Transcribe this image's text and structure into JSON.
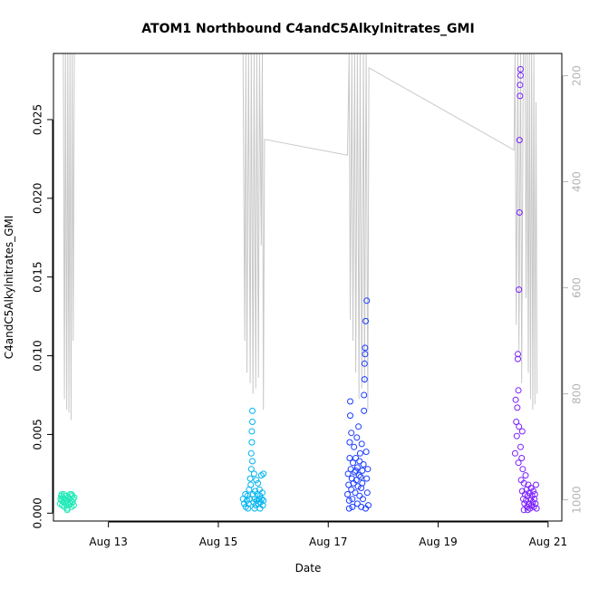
{
  "chart_data": {
    "type": "scatter",
    "title": "ATOM1 Northbound C4andC5Alkylnitrates_GMI",
    "xlabel": "Date",
    "ylabel": "C4andC5Alkylnitrates_GMI",
    "xlim": [
      12.0,
      21.25
    ],
    "ylim": [
      -0.0005,
      0.0292
    ],
    "x_unit": "day of August (date axis)",
    "x_ticks": [
      {
        "value": 13,
        "label": "Aug 13"
      },
      {
        "value": 15,
        "label": "Aug 15"
      },
      {
        "value": 17,
        "label": "Aug 17"
      },
      {
        "value": 19,
        "label": "Aug 19"
      },
      {
        "value": 21,
        "label": "Aug 21"
      }
    ],
    "y_ticks": [
      {
        "value": 0.0,
        "label": "0.000"
      },
      {
        "value": 0.005,
        "label": "0.005"
      },
      {
        "value": 0.01,
        "label": "0.010"
      },
      {
        "value": 0.015,
        "label": "0.015"
      },
      {
        "value": 0.02,
        "label": "0.020"
      },
      {
        "value": 0.025,
        "label": "0.025"
      }
    ],
    "y2_axis": {
      "reversed": true,
      "lim": [
        1040,
        158
      ],
      "color": "#b4b4b4",
      "ticks": [
        {
          "value": 200,
          "label": "200"
        },
        {
          "value": 400,
          "label": "400"
        },
        {
          "value": 600,
          "label": "600"
        },
        {
          "value": 800,
          "label": "800"
        },
        {
          "value": 1000,
          "label": "1000"
        }
      ]
    },
    "grid": false,
    "legend": "none",
    "pressure_line": {
      "color": "#c8c8c8",
      "points": [
        [
          12.18,
          100
        ],
        [
          12.2,
          810
        ],
        [
          12.22,
          100
        ],
        [
          12.24,
          830
        ],
        [
          12.26,
          100
        ],
        [
          12.28,
          835
        ],
        [
          12.3,
          100
        ],
        [
          12.32,
          850
        ],
        [
          12.34,
          100
        ],
        [
          12.36,
          700
        ],
        [
          12.38,
          100
        ],
        [
          15.45,
          100
        ],
        [
          15.48,
          700
        ],
        [
          15.5,
          100
        ],
        [
          15.52,
          760
        ],
        [
          15.55,
          100
        ],
        [
          15.58,
          780
        ],
        [
          15.6,
          100
        ],
        [
          15.63,
          800
        ],
        [
          15.65,
          100
        ],
        [
          15.68,
          790
        ],
        [
          15.7,
          100
        ],
        [
          15.73,
          770
        ],
        [
          15.75,
          100
        ],
        [
          15.78,
          520
        ],
        [
          15.8,
          100
        ],
        [
          15.82,
          830
        ],
        [
          15.84,
          320
        ],
        [
          17.35,
          350
        ],
        [
          17.38,
          100
        ],
        [
          17.4,
          660
        ],
        [
          17.43,
          100
        ],
        [
          17.45,
          700
        ],
        [
          17.48,
          100
        ],
        [
          17.5,
          760
        ],
        [
          17.53,
          100
        ],
        [
          17.56,
          810
        ],
        [
          17.58,
          100
        ],
        [
          17.61,
          790
        ],
        [
          17.64,
          100
        ],
        [
          17.66,
          780
        ],
        [
          17.69,
          100
        ],
        [
          17.72,
          830
        ],
        [
          17.74,
          185
        ],
        [
          20.38,
          340
        ],
        [
          20.4,
          100
        ],
        [
          20.42,
          670
        ],
        [
          20.45,
          100
        ],
        [
          20.47,
          720
        ],
        [
          20.5,
          100
        ],
        [
          20.52,
          780
        ],
        [
          20.55,
          100
        ],
        [
          20.58,
          100
        ],
        [
          20.6,
          620
        ],
        [
          20.62,
          100
        ],
        [
          20.64,
          760
        ],
        [
          20.66,
          100
        ],
        [
          20.68,
          810
        ],
        [
          20.7,
          100
        ],
        [
          20.72,
          830
        ],
        [
          20.74,
          100
        ],
        [
          20.76,
          820
        ],
        [
          20.78,
          250
        ],
        [
          20.8,
          800
        ]
      ]
    },
    "series": [
      {
        "color": "#1de9b6",
        "points": [
          [
            12.12,
            0.0006
          ],
          [
            12.13,
            0.0009
          ],
          [
            12.14,
            0.0011
          ],
          [
            12.15,
            0.0008
          ],
          [
            12.16,
            0.0005
          ],
          [
            12.17,
            0.001
          ],
          [
            12.18,
            0.0007
          ],
          [
            12.19,
            0.0012
          ],
          [
            12.2,
            0.0004
          ],
          [
            12.21,
            0.0009
          ],
          [
            12.22,
            0.0006
          ],
          [
            12.23,
            0.0011
          ],
          [
            12.24,
            0.0008
          ],
          [
            12.25,
            0.0003
          ],
          [
            12.26,
            0.0007
          ],
          [
            12.27,
            0.001
          ],
          [
            12.28,
            0.0005
          ],
          [
            12.29,
            0.0009
          ],
          [
            12.3,
            0.0012
          ],
          [
            12.31,
            0.0006
          ],
          [
            12.32,
            0.0008
          ],
          [
            12.33,
            0.0004
          ],
          [
            12.34,
            0.0011
          ],
          [
            12.35,
            0.0007
          ],
          [
            12.36,
            0.0009
          ],
          [
            12.37,
            0.0005
          ],
          [
            12.38,
            0.001
          ],
          [
            12.15,
            0.0012
          ],
          [
            12.25,
            0.0002
          ],
          [
            12.33,
            0.0012
          ]
        ]
      },
      {
        "color": "#00b4f0",
        "points": [
          [
            15.45,
            0.0009
          ],
          [
            15.47,
            0.0006
          ],
          [
            15.49,
            0.0012
          ],
          [
            15.5,
            0.0004
          ],
          [
            15.52,
            0.0008
          ],
          [
            15.53,
            0.0011
          ],
          [
            15.55,
            0.0006
          ],
          [
            15.56,
            0.0015
          ],
          [
            15.57,
            0.0009
          ],
          [
            15.58,
            0.0022
          ],
          [
            15.59,
            0.0018
          ],
          [
            15.6,
            0.0028
          ],
          [
            15.6,
            0.0038
          ],
          [
            15.61,
            0.0045
          ],
          [
            15.61,
            0.0052
          ],
          [
            15.62,
            0.0058
          ],
          [
            15.62,
            0.0065
          ],
          [
            15.62,
            0.0033
          ],
          [
            15.63,
            0.0012
          ],
          [
            15.64,
            0.0007
          ],
          [
            15.65,
            0.0025
          ],
          [
            15.66,
            0.0009
          ],
          [
            15.67,
            0.0014
          ],
          [
            15.68,
            0.0005
          ],
          [
            15.69,
            0.0021
          ],
          [
            15.7,
            0.0008
          ],
          [
            15.71,
            0.0012
          ],
          [
            15.72,
            0.0019
          ],
          [
            15.73,
            0.0006
          ],
          [
            15.74,
            0.0009
          ],
          [
            15.75,
            0.0015
          ],
          [
            15.76,
            0.0011
          ],
          [
            15.77,
            0.0007
          ],
          [
            15.78,
            0.0024
          ],
          [
            15.79,
            0.0009
          ],
          [
            15.8,
            0.0013
          ],
          [
            15.81,
            0.0005
          ],
          [
            15.82,
            0.0025
          ],
          [
            15.82,
            0.0008
          ],
          [
            15.54,
            0.0003
          ],
          [
            15.66,
            0.0003
          ],
          [
            15.76,
            0.0003
          ]
        ]
      },
      {
        "color": "#1a3cff",
        "points": [
          [
            17.35,
            0.0012
          ],
          [
            17.36,
            0.0025
          ],
          [
            17.37,
            0.0018
          ],
          [
            17.38,
            0.0008
          ],
          [
            17.39,
            0.0035
          ],
          [
            17.39,
            0.0045
          ],
          [
            17.4,
            0.0062
          ],
          [
            17.4,
            0.0071
          ],
          [
            17.41,
            0.0028
          ],
          [
            17.42,
            0.0015
          ],
          [
            17.43,
            0.0022
          ],
          [
            17.44,
            0.0009
          ],
          [
            17.45,
            0.0032
          ],
          [
            17.46,
            0.0019
          ],
          [
            17.47,
            0.0042
          ],
          [
            17.48,
            0.0026
          ],
          [
            17.49,
            0.0013
          ],
          [
            17.5,
            0.0035
          ],
          [
            17.51,
            0.0021
          ],
          [
            17.52,
            0.0048
          ],
          [
            17.53,
            0.0029
          ],
          [
            17.54,
            0.0017
          ],
          [
            17.55,
            0.0055
          ],
          [
            17.56,
            0.0024
          ],
          [
            17.57,
            0.0011
          ],
          [
            17.58,
            0.0038
          ],
          [
            17.59,
            0.0023
          ],
          [
            17.6,
            0.0016
          ],
          [
            17.61,
            0.0044
          ],
          [
            17.62,
            0.0027
          ],
          [
            17.63,
            0.0009
          ],
          [
            17.64,
            0.0031
          ],
          [
            17.65,
            0.0065
          ],
          [
            17.65,
            0.0075
          ],
          [
            17.66,
            0.0085
          ],
          [
            17.66,
            0.0095
          ],
          [
            17.67,
            0.0101
          ],
          [
            17.67,
            0.0105
          ],
          [
            17.68,
            0.0122
          ],
          [
            17.7,
            0.0135
          ],
          [
            17.69,
            0.0039
          ],
          [
            17.7,
            0.0022
          ],
          [
            17.71,
            0.0013
          ],
          [
            17.72,
            0.0028
          ],
          [
            17.73,
            0.0005
          ],
          [
            17.38,
            0.0003
          ],
          [
            17.44,
            0.0004
          ],
          [
            17.53,
            0.0006
          ],
          [
            17.6,
            0.0004
          ],
          [
            17.68,
            0.0003
          ],
          [
            17.42,
            0.0051
          ],
          [
            17.5,
            0.0027
          ],
          [
            17.57,
            0.0033
          ],
          [
            17.62,
            0.0019
          ]
        ]
      },
      {
        "color": "#7a1fff",
        "points": [
          [
            20.4,
            0.0038
          ],
          [
            20.41,
            0.0072
          ],
          [
            20.42,
            0.0058
          ],
          [
            20.43,
            0.0049
          ],
          [
            20.44,
            0.0067
          ],
          [
            20.45,
            0.0101
          ],
          [
            20.45,
            0.0098
          ],
          [
            20.46,
            0.0032
          ],
          [
            20.46,
            0.0078
          ],
          [
            20.47,
            0.0055
          ],
          [
            20.47,
            0.0142
          ],
          [
            20.48,
            0.0191
          ],
          [
            20.48,
            0.0237
          ],
          [
            20.49,
            0.0265
          ],
          [
            20.49,
            0.0272
          ],
          [
            20.5,
            0.0278
          ],
          [
            20.5,
            0.0282
          ],
          [
            20.51,
            0.0021
          ],
          [
            20.52,
            0.0035
          ],
          [
            20.53,
            0.0014
          ],
          [
            20.54,
            0.0028
          ],
          [
            20.55,
            0.0009
          ],
          [
            20.56,
            0.0019
          ],
          [
            20.57,
            0.0006
          ],
          [
            20.58,
            0.0012
          ],
          [
            20.59,
            0.0024
          ],
          [
            20.6,
            0.0008
          ],
          [
            20.61,
            0.0015
          ],
          [
            20.62,
            0.0004
          ],
          [
            20.63,
            0.0011
          ],
          [
            20.64,
            0.0018
          ],
          [
            20.65,
            0.0006
          ],
          [
            20.66,
            0.0013
          ],
          [
            20.67,
            0.0003
          ],
          [
            20.68,
            0.0009
          ],
          [
            20.69,
            0.0016
          ],
          [
            20.7,
            0.0005
          ],
          [
            20.71,
            0.0011
          ],
          [
            20.72,
            0.0007
          ],
          [
            20.73,
            0.0014
          ],
          [
            20.74,
            0.0004
          ],
          [
            20.75,
            0.0009
          ],
          [
            20.76,
            0.0012
          ],
          [
            20.77,
            0.0006
          ],
          [
            20.78,
            0.0018
          ],
          [
            20.79,
            0.0003
          ],
          [
            20.5,
            0.0042
          ],
          [
            20.53,
            0.0052
          ],
          [
            20.56,
            0.0002
          ],
          [
            20.63,
            0.0002
          ]
        ]
      }
    ]
  }
}
